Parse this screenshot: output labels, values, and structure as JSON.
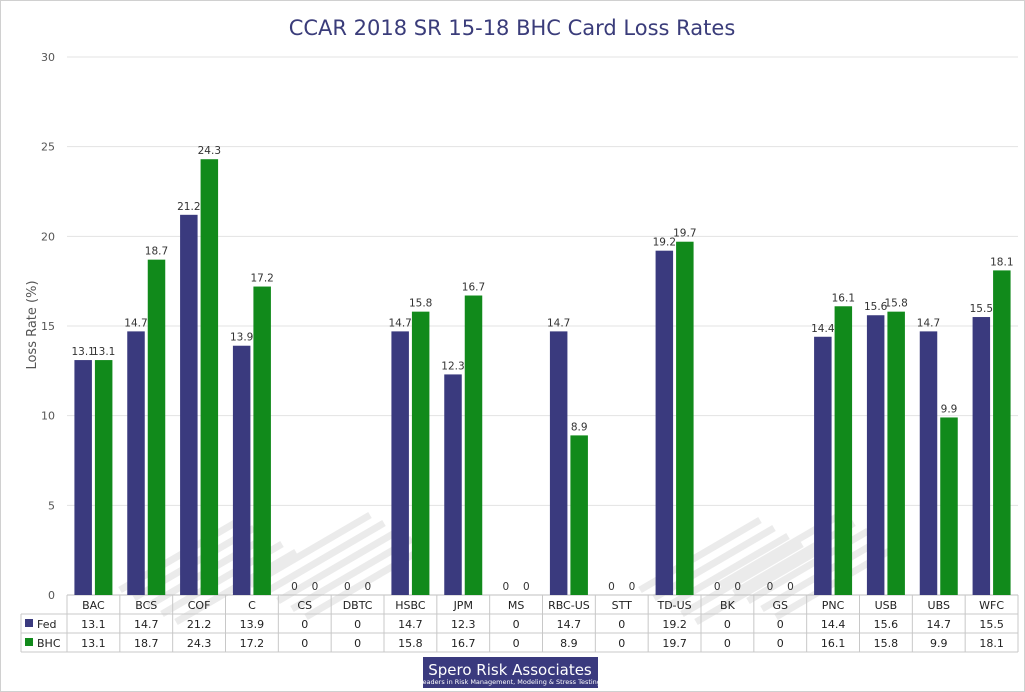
{
  "chart_data": {
    "type": "bar",
    "title": "CCAR 2018 SR 15-18 BHC Card Loss Rates",
    "ylabel": "Loss Rate (%)",
    "ylim": [
      0,
      30
    ],
    "yticks": [
      0,
      5,
      10,
      15,
      20,
      25,
      30
    ],
    "grid": true,
    "legend": "data-table",
    "categories": [
      "BAC",
      "BCS",
      "COF",
      "C",
      "CS",
      "DBTC",
      "HSBC",
      "JPM",
      "MS",
      "RBC-US",
      "STT",
      "TD-US",
      "BK",
      "GS",
      "PNC",
      "USB",
      "UBS",
      "WFC"
    ],
    "series": [
      {
        "name": "Fed",
        "color": "#3a3a7e",
        "values": [
          13.1,
          14.7,
          21.2,
          13.9,
          0,
          0,
          14.7,
          12.3,
          0,
          14.7,
          0,
          19.2,
          0,
          0,
          14.4,
          15.6,
          14.7,
          15.5
        ]
      },
      {
        "name": "BHC",
        "color": "#118a1b",
        "values": [
          13.1,
          18.7,
          24.3,
          17.2,
          0,
          0,
          15.8,
          16.7,
          0,
          8.9,
          0,
          19.7,
          0,
          0,
          16.1,
          15.8,
          9.9,
          18.1
        ]
      }
    ]
  },
  "logo": {
    "name": "Spero Risk Associates",
    "tagline": "Leaders in Risk Management, Modeling & Stress Testing",
    "color": "#3a3a7e"
  }
}
